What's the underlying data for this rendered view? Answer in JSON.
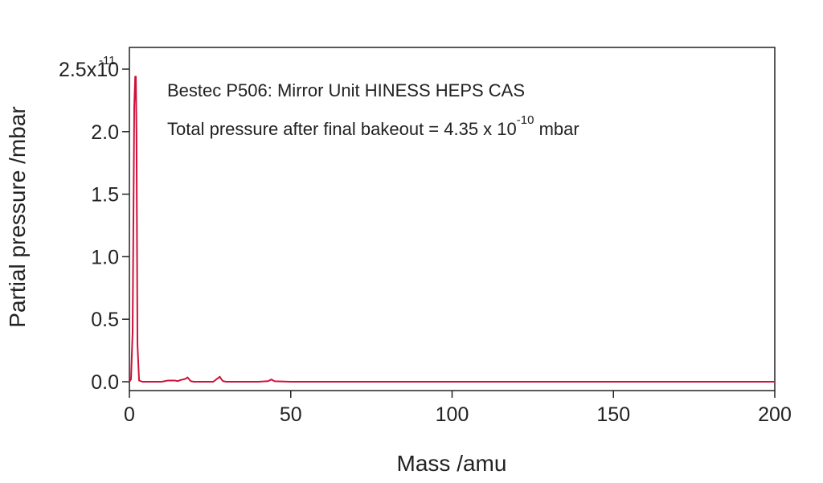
{
  "chart_data": {
    "type": "line",
    "title": "",
    "xlabel": "Mass /amu",
    "ylabel": "Partial pressure /mbar",
    "xlim": [
      0,
      200
    ],
    "ylim": [
      0,
      2.7
    ],
    "x_ticks": [
      0,
      50,
      100,
      150,
      200
    ],
    "y_ticks": [
      0.0,
      0.5,
      1.0,
      1.5,
      2.0,
      2.5
    ],
    "y_tick_labels": [
      "0.0",
      "0.5",
      "1.0",
      "1.5",
      "2.0",
      "2.5x10"
    ],
    "y_tick_exponent": "-11",
    "grid": false,
    "annotations": [
      {
        "text": "Bestec P506: Mirror Unit HINESS HEPS CAS"
      },
      {
        "text": "Total pressure after final bakeout = 4.35 x 10",
        "superscript": "-10",
        "suffix": " mbar"
      }
    ],
    "series": [
      {
        "color": "#d0103a",
        "x": [
          0,
          0.5,
          1,
          1.5,
          1.8,
          2,
          2.2,
          2.5,
          3,
          4,
          6,
          10,
          12,
          14,
          15,
          16,
          17,
          17.5,
          18,
          18.5,
          19,
          20,
          24,
          26,
          27,
          28,
          28.5,
          29,
          30,
          32,
          40,
          43,
          44,
          45,
          50,
          100,
          150,
          200
        ],
        "y": [
          0,
          0.02,
          0.4,
          2.2,
          2.44,
          2.44,
          2.0,
          0.3,
          0.01,
          0,
          0,
          0,
          0.01,
          0.01,
          0.005,
          0.015,
          0.02,
          0.025,
          0.035,
          0.02,
          0.005,
          0,
          0,
          0,
          0.02,
          0.04,
          0.02,
          0.005,
          0,
          0,
          0,
          0.005,
          0.018,
          0.004,
          0,
          0,
          0,
          0
        ]
      }
    ]
  }
}
